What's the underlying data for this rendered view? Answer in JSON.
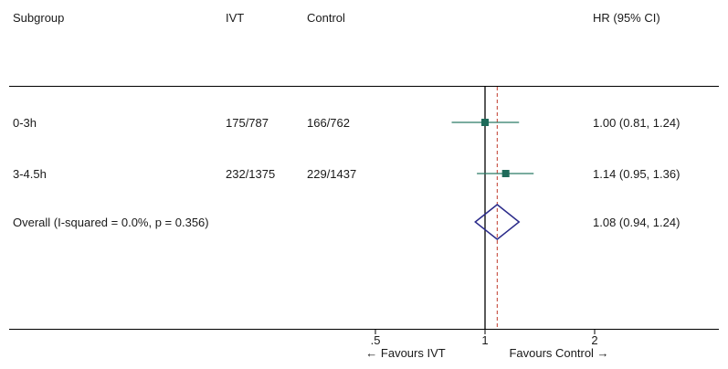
{
  "chart_data": {
    "type": "forest",
    "columns": {
      "subgroup": "Subgroup",
      "ivt": "IVT",
      "control": "Control",
      "hr": "HR (95% CI)"
    },
    "rows": [
      {
        "label": "0-3h",
        "ivt": "175/787",
        "control": "166/762",
        "hr_text": "1.00 (0.81, 1.24)",
        "estimate": 1.0,
        "ci": [
          0.81,
          1.24
        ]
      },
      {
        "label": "3-4.5h",
        "ivt": "232/1375",
        "control": "229/1437",
        "hr_text": "1.14 (0.95, 1.36)",
        "estimate": 1.14,
        "ci": [
          0.95,
          1.36
        ]
      }
    ],
    "overall": {
      "label": "Overall  (I-squared = 0.0%, p = 0.356)",
      "hr_text": "1.08 (0.94, 1.24)",
      "estimate": 1.08,
      "ci": [
        0.94,
        1.24
      ]
    },
    "x_axis": {
      "scale": "log",
      "ticks": [
        {
          "value": 0.5,
          "label": ".5"
        },
        {
          "value": 1,
          "label": "1"
        },
        {
          "value": 2,
          "label": "2"
        }
      ],
      "null_line": 1
    },
    "favours_left": "← Favours IVT",
    "favours_right": "Favours Control →",
    "colors": {
      "marker": "#1f6b5a",
      "ci_line": "#2a7a66",
      "diamond": "#2b2b8a",
      "reference": "#c0392b",
      "axis": "#000000"
    }
  }
}
